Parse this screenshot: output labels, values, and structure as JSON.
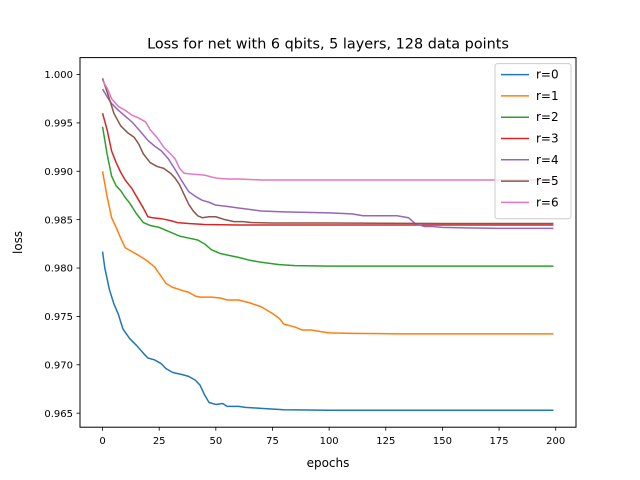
{
  "chart_data": {
    "type": "line",
    "title": "Loss for net with 6 qbits, 5 layers, 128 data points",
    "xlabel": "epochs",
    "ylabel": "loss",
    "xlim": [
      -9.95,
      208.95
    ],
    "ylim": [
      0.96355,
      1.00175
    ],
    "xticks": [
      0,
      25,
      50,
      75,
      100,
      125,
      150,
      175,
      200
    ],
    "yticks": [
      0.965,
      0.97,
      0.975,
      0.98,
      0.985,
      0.99,
      0.995,
      1.0
    ],
    "ytick_labels": [
      "0.965",
      "0.970",
      "0.975",
      "0.980",
      "0.985",
      "0.990",
      "0.995",
      "1.000"
    ],
    "grid": false,
    "legend_position": "top-right",
    "series": [
      {
        "name": "r=0",
        "color": "#1f77b4",
        "points": [
          [
            0,
            0.9817
          ],
          [
            1,
            0.98
          ],
          [
            3,
            0.9778
          ],
          [
            5,
            0.9763
          ],
          [
            7,
            0.9752
          ],
          [
            9,
            0.9737
          ],
          [
            12,
            0.9727
          ],
          [
            15,
            0.972
          ],
          [
            18,
            0.9712
          ],
          [
            20,
            0.9707
          ],
          [
            23,
            0.9705
          ],
          [
            26,
            0.9701
          ],
          [
            28,
            0.9696
          ],
          [
            31,
            0.9692
          ],
          [
            35,
            0.969
          ],
          [
            38,
            0.9688
          ],
          [
            41,
            0.9684
          ],
          [
            43,
            0.9679
          ],
          [
            45,
            0.9669
          ],
          [
            47,
            0.9661
          ],
          [
            50,
            0.9659
          ],
          [
            53,
            0.966
          ],
          [
            55,
            0.9657
          ],
          [
            60,
            0.9657
          ],
          [
            63,
            0.9656
          ],
          [
            70,
            0.9655
          ],
          [
            80,
            0.96535
          ],
          [
            100,
            0.9653
          ],
          [
            150,
            0.9653
          ],
          [
            199,
            0.9653
          ]
        ]
      },
      {
        "name": "r=1",
        "color": "#ff7f0e",
        "points": [
          [
            0,
            0.99
          ],
          [
            2,
            0.9874
          ],
          [
            4,
            0.9852
          ],
          [
            6,
            0.9842
          ],
          [
            8,
            0.9831
          ],
          [
            10,
            0.9821
          ],
          [
            13,
            0.9817
          ],
          [
            16,
            0.9813
          ],
          [
            20,
            0.9807
          ],
          [
            23,
            0.9801
          ],
          [
            26,
            0.9791
          ],
          [
            28,
            0.9784
          ],
          [
            31,
            0.978
          ],
          [
            35,
            0.9777
          ],
          [
            38,
            0.9775
          ],
          [
            41,
            0.9771
          ],
          [
            43,
            0.977
          ],
          [
            48,
            0.977
          ],
          [
            52,
            0.9769
          ],
          [
            55,
            0.9767
          ],
          [
            60,
            0.9767
          ],
          [
            65,
            0.9764
          ],
          [
            70,
            0.976
          ],
          [
            75,
            0.9753
          ],
          [
            78,
            0.9748
          ],
          [
            80,
            0.9742
          ],
          [
            85,
            0.9739
          ],
          [
            88,
            0.9736
          ],
          [
            92,
            0.9736
          ],
          [
            97,
            0.9734
          ],
          [
            100,
            0.9733
          ],
          [
            110,
            0.97325
          ],
          [
            130,
            0.9732
          ],
          [
            199,
            0.9732
          ]
        ]
      },
      {
        "name": "r=2",
        "color": "#2ca02c",
        "points": [
          [
            0,
            0.9946
          ],
          [
            2,
            0.9918
          ],
          [
            4,
            0.9895
          ],
          [
            6,
            0.9885
          ],
          [
            8,
            0.988
          ],
          [
            10,
            0.9873
          ],
          [
            12,
            0.9867
          ],
          [
            15,
            0.9856
          ],
          [
            18,
            0.9847
          ],
          [
            21,
            0.9844
          ],
          [
            25,
            0.9842
          ],
          [
            28,
            0.9839
          ],
          [
            31,
            0.9836
          ],
          [
            34,
            0.9833
          ],
          [
            38,
            0.9831
          ],
          [
            42,
            0.9829
          ],
          [
            45,
            0.9825
          ],
          [
            48,
            0.9819
          ],
          [
            52,
            0.9815
          ],
          [
            56,
            0.9813
          ],
          [
            60,
            0.9811
          ],
          [
            65,
            0.9808
          ],
          [
            70,
            0.9806
          ],
          [
            78,
            0.98035
          ],
          [
            85,
            0.98025
          ],
          [
            100,
            0.9802
          ],
          [
            150,
            0.9802
          ],
          [
            199,
            0.9802
          ]
        ]
      },
      {
        "name": "r=3",
        "color": "#d62728",
        "points": [
          [
            0,
            0.996
          ],
          [
            2,
            0.9943
          ],
          [
            4,
            0.9921
          ],
          [
            6,
            0.9909
          ],
          [
            8,
            0.9899
          ],
          [
            10,
            0.9891
          ],
          [
            13,
            0.9882
          ],
          [
            16,
            0.987
          ],
          [
            18,
            0.9862
          ],
          [
            20,
            0.9853
          ],
          [
            22,
            0.9852
          ],
          [
            26,
            0.9851
          ],
          [
            30,
            0.9849
          ],
          [
            33,
            0.9847
          ],
          [
            38,
            0.9846
          ],
          [
            45,
            0.9845
          ],
          [
            60,
            0.98445
          ],
          [
            100,
            0.98445
          ],
          [
            150,
            0.98445
          ],
          [
            199,
            0.98445
          ]
        ]
      },
      {
        "name": "r=4",
        "color": "#9467bd",
        "points": [
          [
            0,
            0.9985
          ],
          [
            2,
            0.9977
          ],
          [
            4,
            0.997
          ],
          [
            7,
            0.9963
          ],
          [
            10,
            0.9957
          ],
          [
            13,
            0.9951
          ],
          [
            16,
            0.9943
          ],
          [
            20,
            0.9932
          ],
          [
            23,
            0.9926
          ],
          [
            26,
            0.9921
          ],
          [
            29,
            0.9913
          ],
          [
            32,
            0.9902
          ],
          [
            35,
            0.989
          ],
          [
            38,
            0.9879
          ],
          [
            41,
            0.9874
          ],
          [
            44,
            0.987
          ],
          [
            47,
            0.9868
          ],
          [
            50,
            0.9865
          ],
          [
            54,
            0.9864
          ],
          [
            60,
            0.9862
          ],
          [
            70,
            0.9859
          ],
          [
            80,
            0.9858
          ],
          [
            100,
            0.9857
          ],
          [
            110,
            0.9856
          ],
          [
            115,
            0.9854
          ],
          [
            130,
            0.9854
          ],
          [
            135,
            0.9852
          ],
          [
            138,
            0.9846
          ],
          [
            142,
            0.9843
          ],
          [
            145,
            0.9843
          ],
          [
            150,
            0.9842
          ],
          [
            160,
            0.98415
          ],
          [
            175,
            0.9841
          ],
          [
            199,
            0.9841
          ]
        ]
      },
      {
        "name": "r=5",
        "color": "#8c564b",
        "points": [
          [
            0,
            0.9996
          ],
          [
            1,
            0.9989
          ],
          [
            3,
            0.9975
          ],
          [
            5,
            0.996
          ],
          [
            8,
            0.9947
          ],
          [
            11,
            0.994
          ],
          [
            14,
            0.9935
          ],
          [
            16,
            0.9928
          ],
          [
            18,
            0.9918
          ],
          [
            21,
            0.9909
          ],
          [
            24,
            0.9905
          ],
          [
            27,
            0.9903
          ],
          [
            30,
            0.9898
          ],
          [
            32,
            0.9893
          ],
          [
            34,
            0.9886
          ],
          [
            36,
            0.9876
          ],
          [
            38,
            0.9866
          ],
          [
            40,
            0.9859
          ],
          [
            42,
            0.9854
          ],
          [
            44,
            0.9852
          ],
          [
            47,
            0.9853
          ],
          [
            50,
            0.9853
          ],
          [
            54,
            0.985
          ],
          [
            58,
            0.9848
          ],
          [
            62,
            0.9848
          ],
          [
            66,
            0.9847
          ],
          [
            75,
            0.98465
          ],
          [
            100,
            0.98465
          ],
          [
            150,
            0.9846
          ],
          [
            199,
            0.9846
          ]
        ]
      },
      {
        "name": "r=6",
        "color": "#e377c2",
        "points": [
          [
            0,
            0.9994
          ],
          [
            2,
            0.9986
          ],
          [
            4,
            0.9975
          ],
          [
            7,
            0.9967
          ],
          [
            10,
            0.9963
          ],
          [
            13,
            0.9958
          ],
          [
            16,
            0.9955
          ],
          [
            19,
            0.9951
          ],
          [
            21,
            0.9943
          ],
          [
            24,
            0.9935
          ],
          [
            27,
            0.9925
          ],
          [
            30,
            0.9918
          ],
          [
            32,
            0.9913
          ],
          [
            34,
            0.9903
          ],
          [
            36,
            0.9898
          ],
          [
            40,
            0.9897
          ],
          [
            45,
            0.9896
          ],
          [
            50,
            0.9893
          ],
          [
            55,
            0.9892
          ],
          [
            60,
            0.9892
          ],
          [
            70,
            0.9891
          ],
          [
            100,
            0.9891
          ],
          [
            150,
            0.9891
          ],
          [
            199,
            0.9891
          ]
        ]
      }
    ]
  }
}
